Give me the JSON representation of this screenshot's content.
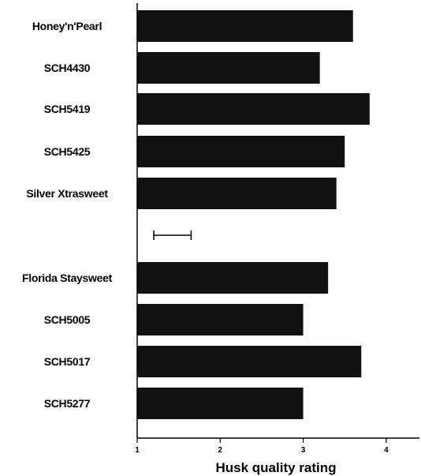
{
  "chart_data": {
    "type": "bar",
    "orientation": "horizontal",
    "categories": [
      "Honey'n'Pearl",
      "SCH4430",
      "SCH5419",
      "SCH5425",
      "Silver Xtrasweet",
      "Florida Staysweet",
      "SCH5005",
      "SCH5017",
      "SCH5277"
    ],
    "groups": [
      {
        "categories": [
          "Honey'n'Pearl",
          "SCH4430",
          "SCH5419",
          "SCH5425",
          "Silver Xtrasweet"
        ],
        "values": [
          3.6,
          3.2,
          3.8,
          3.5,
          3.4
        ]
      },
      {
        "categories": [
          "Florida Staysweet",
          "SCH5005",
          "SCH5017",
          "SCH5277"
        ],
        "values": [
          3.3,
          3.0,
          3.7,
          3.0
        ]
      }
    ],
    "values": [
      3.6,
      3.2,
      3.8,
      3.5,
      3.4,
      3.3,
      3.0,
      3.7,
      3.0
    ],
    "xlabel": "Husk quality rating",
    "xticks": [
      "1",
      "2",
      "3",
      "4"
    ],
    "xlim": [
      1,
      4.4
    ],
    "error_bar": {
      "from": 1.2,
      "to": 1.65
    },
    "bar_color": "#111111",
    "grid": false
  }
}
